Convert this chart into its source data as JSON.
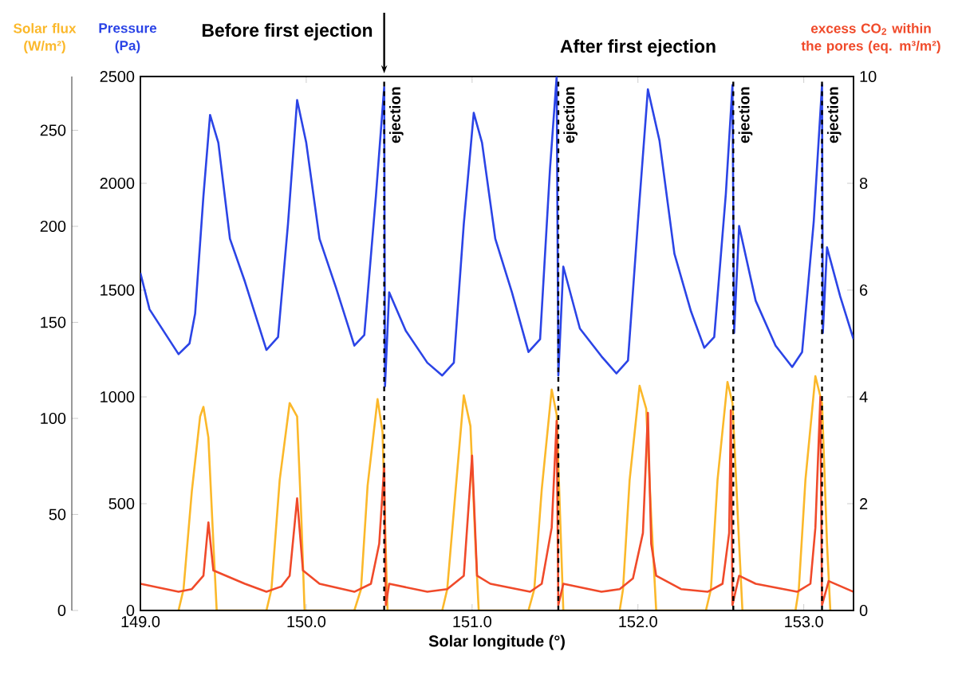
{
  "chart_data": {
    "type": "line",
    "xlabel": "Solar longitude (°)",
    "ylabel": "Pressure (Pa)",
    "y2label": "excess CO$_{2}$ within the pores (eq. m³/m²)",
    "y3label": "Solar flux (W/m²)",
    "annotations": [
      "Before first ejection",
      "After first ejection"
    ],
    "xlim": [
      149.0,
      153.3
    ],
    "xticks": [
      {
        "value": 149,
        "label": "149.0"
      },
      {
        "value": 150,
        "label": "150.0"
      },
      {
        "value": 151,
        "label": "151.0"
      },
      {
        "value": 152,
        "label": "152.0"
      },
      {
        "value": 153,
        "label": "153.0"
      }
    ],
    "ylim": [
      0,
      2500
    ],
    "yticks": [
      0,
      500,
      1000,
      1500,
      2000,
      2500
    ],
    "y2lim": [
      0,
      10
    ],
    "y2ticks": [
      0,
      2,
      4,
      6,
      8,
      10
    ],
    "y3lim": [
      0,
      278
    ],
    "y3ticks": [
      0,
      50,
      100,
      150,
      200,
      250
    ],
    "line_style": "solid",
    "series": [
      {
        "axis": "y3",
        "color": "#fbb82a",
        "x": [
          149.23,
          149.26,
          149.31,
          149.36,
          149.38,
          149.41,
          149.44,
          149.46,
          149.76,
          149.79,
          149.84,
          149.9,
          149.945,
          149.97,
          149.99,
          150.29,
          150.33,
          150.37,
          150.43,
          150.46,
          150.49,
          150.82,
          150.85,
          150.9,
          150.95,
          150.99,
          151.02,
          151.04,
          151.34,
          151.375,
          151.42,
          151.48,
          151.51,
          151.55,
          151.89,
          151.91,
          151.95,
          152.01,
          152.05,
          152.08,
          152.11,
          152.41,
          152.44,
          152.48,
          152.54,
          152.57,
          152.61,
          152.63,
          152.95,
          152.97,
          153.01,
          153.07,
          153.11,
          153.14,
          153.16
        ],
        "values": [
          0,
          11,
          62,
          101,
          106,
          90,
          35,
          0,
          0,
          11,
          68,
          108,
          101,
          49,
          0,
          0,
          11,
          65,
          110,
          93,
          0,
          0,
          11,
          62,
          112,
          96,
          35,
          0,
          0,
          11,
          63,
          115,
          102,
          0,
          0,
          11,
          68,
          117,
          105,
          49,
          0,
          0,
          11,
          68,
          119,
          108,
          35,
          0,
          0,
          11,
          68,
          122,
          108,
          35,
          0
        ]
      },
      {
        "axis": "y2",
        "color": "#f04a2a",
        "x": [
          149.0,
          149.23,
          149.31,
          149.38,
          149.41,
          149.44,
          149.63,
          149.76,
          149.85,
          149.9,
          149.945,
          149.98,
          150.08,
          150.29,
          150.39,
          150.44,
          150.47,
          150.48,
          150.5,
          150.73,
          150.85,
          150.95,
          151.0,
          151.03,
          151.11,
          151.35,
          151.42,
          151.48,
          151.51,
          151.52,
          151.55,
          151.78,
          151.89,
          151.97,
          152.03,
          152.06,
          152.08,
          152.11,
          152.26,
          152.42,
          152.51,
          152.55,
          152.56,
          152.57,
          152.61,
          152.71,
          152.96,
          153.04,
          153.07,
          153.1,
          153.11,
          153.15,
          153.3
        ],
        "values": [
          0.5,
          0.35,
          0.4,
          0.65,
          1.65,
          0.75,
          0.5,
          0.35,
          0.45,
          0.65,
          2.1,
          0.75,
          0.5,
          0.35,
          0.5,
          1.25,
          2.7,
          0.1,
          0.5,
          0.35,
          0.4,
          0.65,
          2.9,
          0.65,
          0.5,
          0.35,
          0.5,
          1.55,
          3.55,
          0.1,
          0.5,
          0.35,
          0.4,
          0.6,
          1.45,
          3.7,
          1.25,
          0.65,
          0.4,
          0.35,
          0.5,
          1.45,
          3.75,
          0.1,
          0.65,
          0.5,
          0.35,
          0.5,
          1.55,
          4.0,
          0.1,
          0.55,
          0.35
        ]
      },
      {
        "axis": "y",
        "color": "#2b44e6",
        "x": [
          149.0,
          149.055,
          149.23,
          149.296,
          149.33,
          149.38,
          149.42,
          149.47,
          149.54,
          149.63,
          149.76,
          149.83,
          149.89,
          149.945,
          150.0,
          150.08,
          150.18,
          150.29,
          150.35,
          150.42,
          150.47,
          150.475,
          150.5,
          150.6,
          150.73,
          150.82,
          150.89,
          150.95,
          151.01,
          151.06,
          151.14,
          151.24,
          151.34,
          151.41,
          151.47,
          151.51,
          151.52,
          151.55,
          151.65,
          151.78,
          151.87,
          151.94,
          152.0,
          152.06,
          152.13,
          152.22,
          152.32,
          152.4,
          152.46,
          152.53,
          152.57,
          152.58,
          152.61,
          152.71,
          152.83,
          152.93,
          152.99,
          153.06,
          153.11,
          153.115,
          153.14,
          153.22,
          153.3
        ],
        "values": [
          1580,
          1410,
          1200,
          1250,
          1390,
          1940,
          2320,
          2190,
          1740,
          1540,
          1220,
          1280,
          1810,
          2390,
          2190,
          1740,
          1510,
          1240,
          1290,
          1940,
          2450,
          1050,
          1490,
          1310,
          1160,
          1100,
          1160,
          1810,
          2330,
          2190,
          1740,
          1490,
          1210,
          1270,
          2070,
          2500,
          1100,
          1610,
          1320,
          1190,
          1110,
          1170,
          1820,
          2440,
          2200,
          1670,
          1400,
          1230,
          1280,
          1950,
          2460,
          1300,
          1800,
          1450,
          1240,
          1140,
          1210,
          1820,
          2460,
          1300,
          1700,
          1470,
          1270
        ]
      }
    ],
    "ref_lines": [
      {
        "axis": "x",
        "value": 150.47,
        "label": "ejection",
        "color": "#000000",
        "line_style": "dashed"
      },
      {
        "axis": "x",
        "value": 151.52,
        "label": "ejection",
        "color": "#000000",
        "line_style": "dashed"
      },
      {
        "axis": "x",
        "value": 152.575,
        "label": "ejection",
        "color": "#000000",
        "line_style": "dashed"
      },
      {
        "axis": "x",
        "value": 153.11,
        "label": "ejection",
        "color": "#000000",
        "line_style": "dashed"
      }
    ]
  }
}
